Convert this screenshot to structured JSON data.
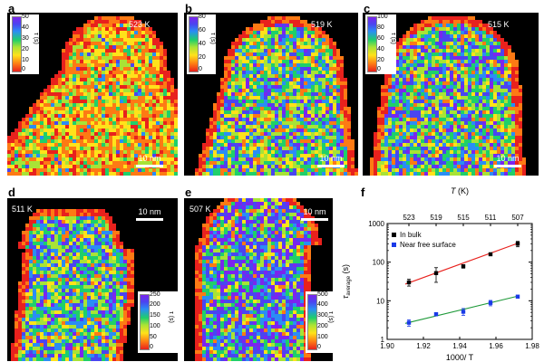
{
  "panels": [
    {
      "letter": "a",
      "temperature": "523 K",
      "scale_bar": "10 nm",
      "colorbar": {
        "title": "τ (s)",
        "ticks": [
          "50",
          "40",
          "30",
          "20",
          "10",
          "0"
        ]
      }
    },
    {
      "letter": "b",
      "temperature": "519 K",
      "scale_bar": "10 nm",
      "colorbar": {
        "title": "τ (s)",
        "ticks": [
          "80",
          "60",
          "40",
          "20",
          "0"
        ]
      }
    },
    {
      "letter": "c",
      "temperature": "515 K",
      "scale_bar": "10 nm",
      "colorbar": {
        "title": "τ (s)",
        "ticks": [
          "100",
          "80",
          "60",
          "40",
          "20",
          "0"
        ]
      }
    },
    {
      "letter": "d",
      "temperature": "511 K",
      "scale_bar": "10 nm",
      "colorbar": {
        "title": "τ (s)",
        "ticks": [
          "250",
          "200",
          "150",
          "100",
          "50",
          "0"
        ]
      }
    },
    {
      "letter": "e",
      "temperature": "507 K",
      "scale_bar": "10 nm",
      "colorbar": {
        "title": "τ (s)",
        "ticks": [
          "500",
          "400",
          "300",
          "200",
          "100",
          "0"
        ]
      }
    }
  ],
  "colors": {
    "red": "#e8211d",
    "orange": "#fd7a14",
    "yellow": "#ffe21a",
    "lime": "#a8e336",
    "green": "#1fcf6a",
    "blue": "#2a8df5",
    "indigo": "#4a45f0",
    "violet": "#7b25ee"
  },
  "chart_data": {
    "panel_letter": "f",
    "type": "scatter",
    "xlabel": "1000/ T",
    "ylabel": "τ",
    "ylabel_sub": "average",
    "ylabel_unit": " (s)",
    "top_axis_label": "T (K)",
    "x_ticks": [
      "1.90",
      "1.92",
      "1.94",
      "1.96",
      "1.98"
    ],
    "x_tick_values": [
      1.9,
      1.92,
      1.94,
      1.96,
      1.98
    ],
    "top_ticks": [
      "523",
      "519",
      "515",
      "511",
      "507"
    ],
    "top_tick_values": [
      1.912,
      1.927,
      1.942,
      1.957,
      1.972
    ],
    "y_ticks": [
      "1",
      "10",
      "100",
      "1000"
    ],
    "y_tick_values": [
      1,
      10,
      100,
      1000
    ],
    "xlim": [
      1.9,
      1.98
    ],
    "ylim": [
      1,
      1000
    ],
    "yscale": "log",
    "legend_position": "top-left",
    "series": [
      {
        "name": "In bulk",
        "color": "#000000",
        "fit_color": "#e8211d",
        "x": [
          1.912,
          1.927,
          1.942,
          1.957,
          1.972
        ],
        "y": [
          30,
          52,
          78,
          160,
          300
        ],
        "err_low": [
          24,
          30,
          70,
          148,
          250
        ],
        "err_high": [
          36,
          72,
          86,
          172,
          345
        ],
        "fit": [
          [
            1.91,
            27
          ],
          [
            1.973,
            320
          ]
        ]
      },
      {
        "name": "Near free surface",
        "color": "#1a3ae8",
        "fit_color": "#1f9a3a",
        "x": [
          1.912,
          1.927,
          1.942,
          1.957,
          1.972
        ],
        "y": [
          2.7,
          4.5,
          5.2,
          8.8,
          12.8
        ],
        "err_low": [
          2.2,
          4.1,
          4.2,
          7.4,
          11.8
        ],
        "err_high": [
          3.2,
          4.9,
          6.3,
          10.2,
          13.8
        ],
        "fit": [
          [
            1.91,
            2.6
          ],
          [
            1.973,
            13.5
          ]
        ]
      }
    ]
  }
}
